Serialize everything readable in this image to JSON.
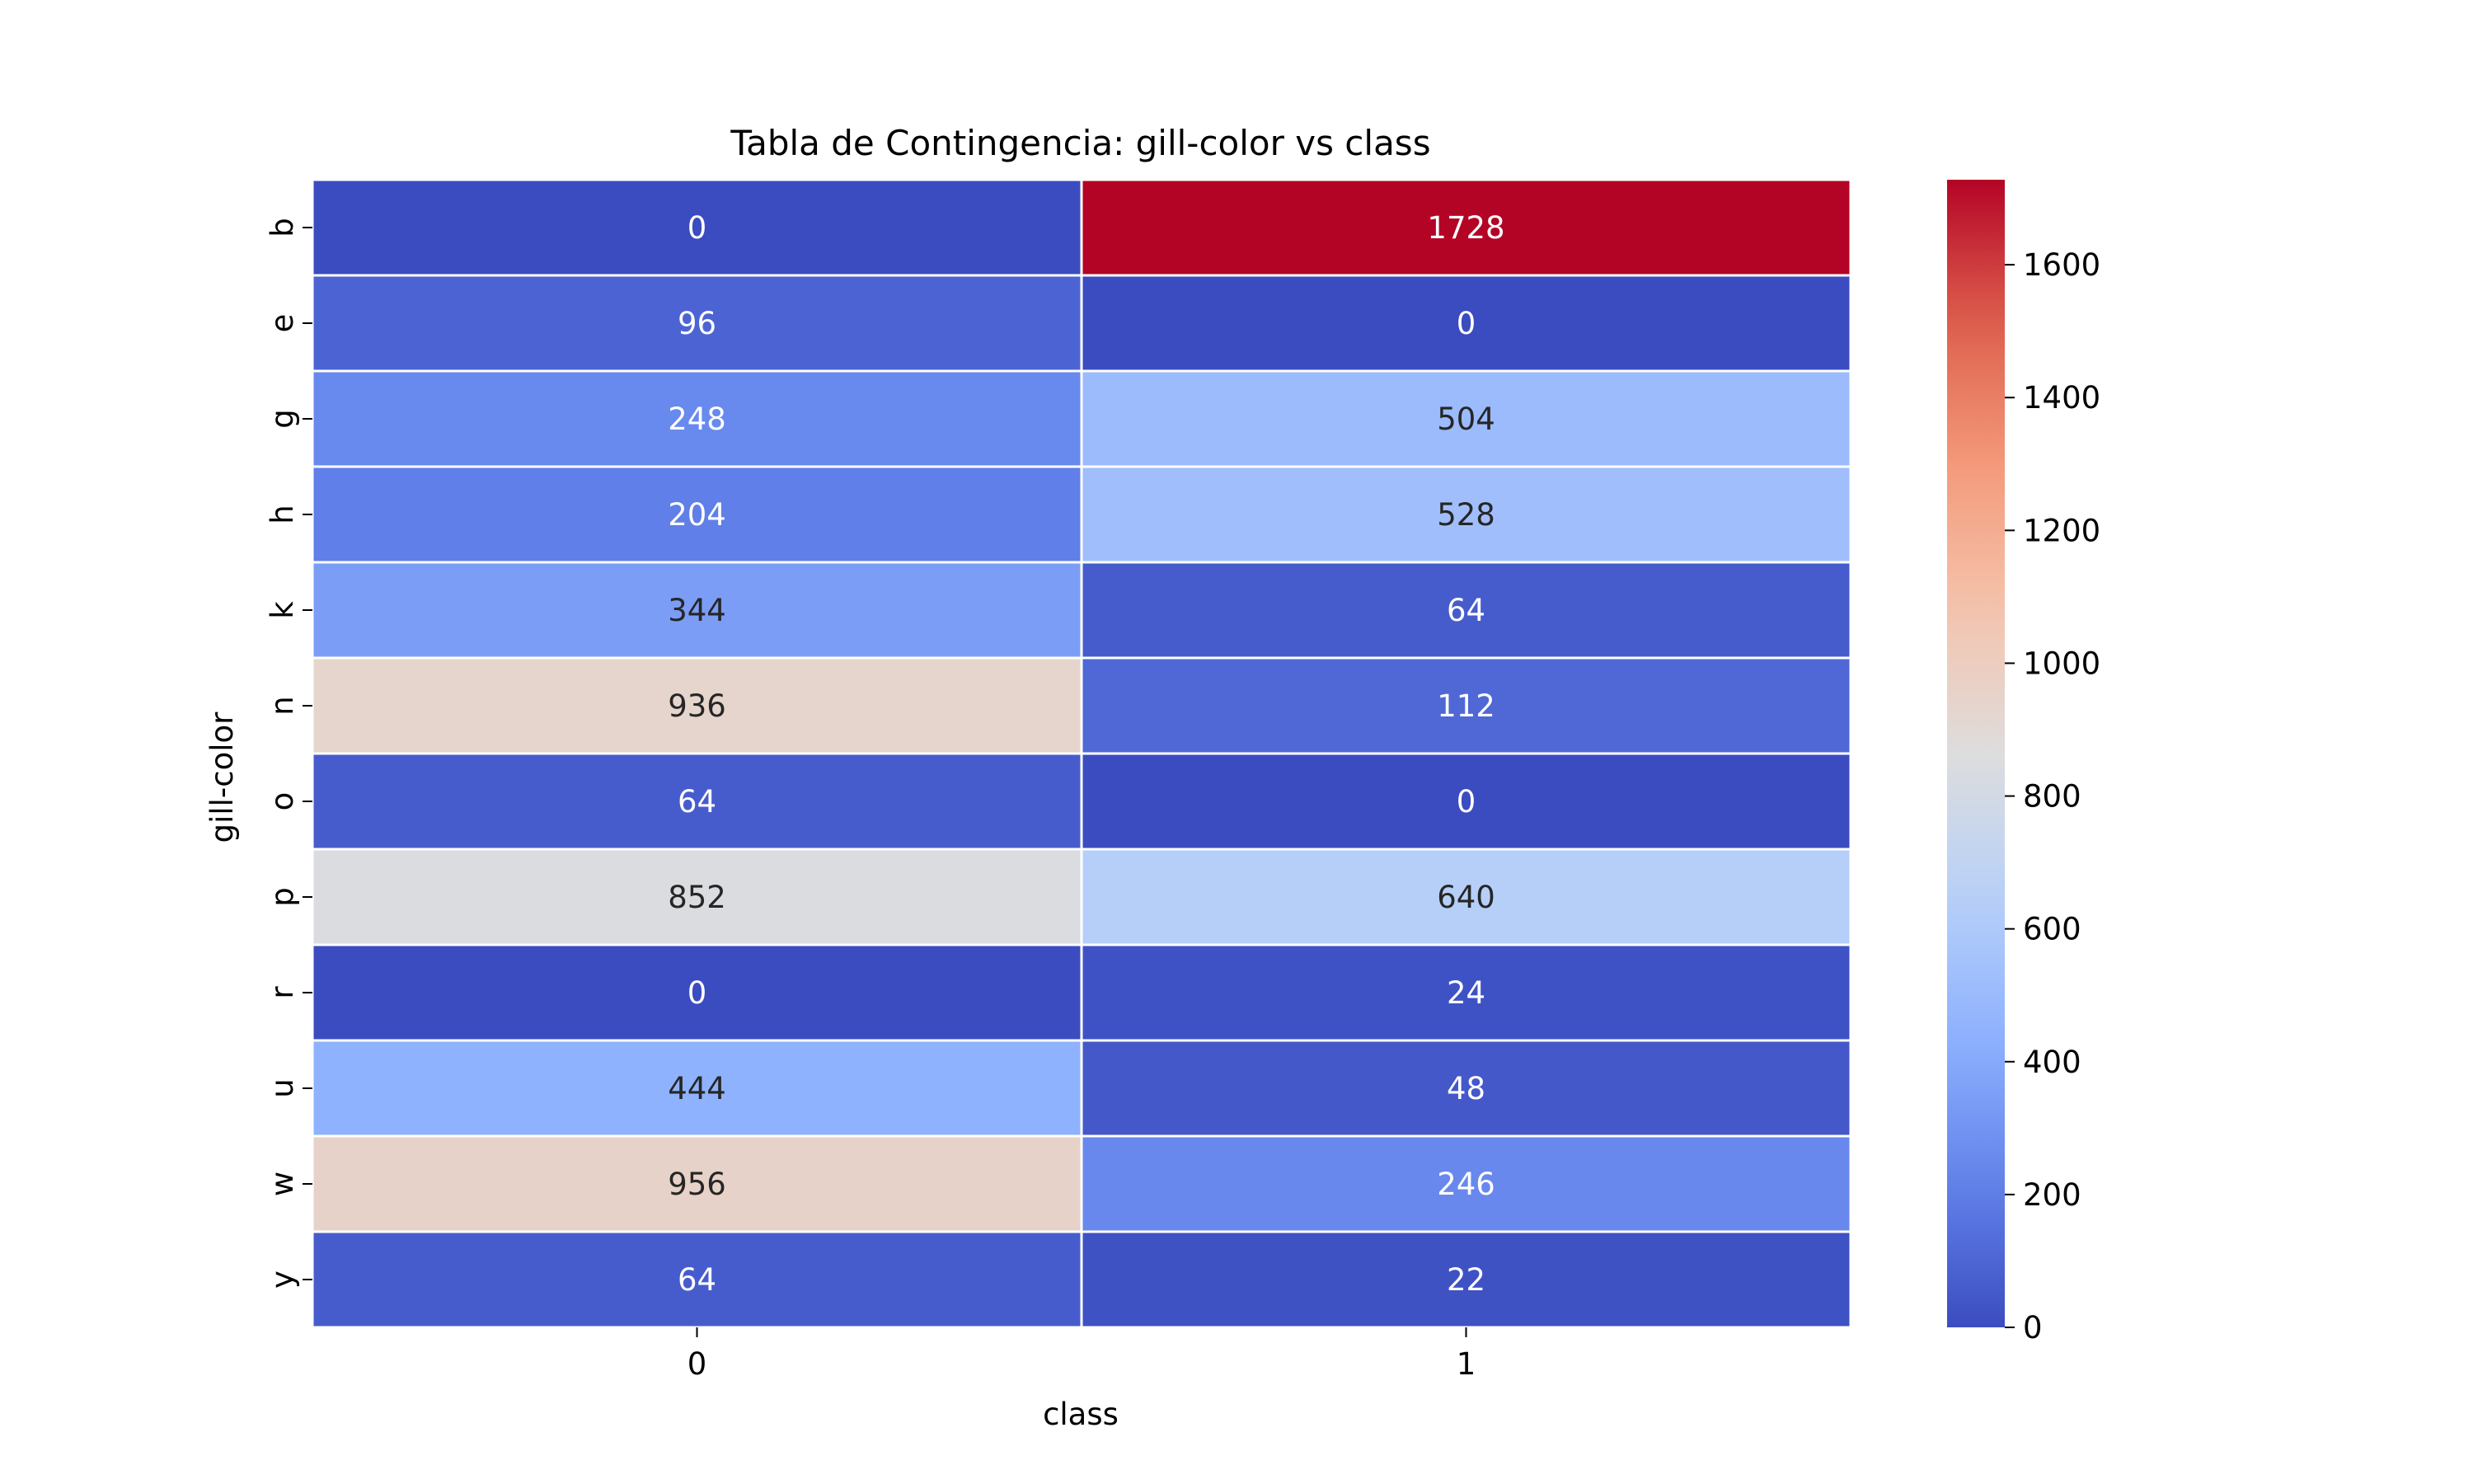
{
  "chart_data": {
    "type": "heatmap",
    "title": "Tabla de Contingencia: gill-color vs class",
    "xlabel": "class",
    "ylabel": "gill-color",
    "x_categories": [
      "0",
      "1"
    ],
    "y_categories": [
      "b",
      "e",
      "g",
      "h",
      "k",
      "n",
      "o",
      "p",
      "r",
      "u",
      "w",
      "y"
    ],
    "values": [
      [
        0,
        1728
      ],
      [
        96,
        0
      ],
      [
        248,
        504
      ],
      [
        204,
        528
      ],
      [
        344,
        64
      ],
      [
        936,
        112
      ],
      [
        64,
        0
      ],
      [
        852,
        640
      ],
      [
        0,
        24
      ],
      [
        444,
        48
      ],
      [
        956,
        246
      ],
      [
        64,
        22
      ]
    ],
    "colormap": "coolwarm",
    "vmin": 0,
    "vmax": 1728,
    "colorbar_ticks": [
      0,
      200,
      400,
      600,
      800,
      1000,
      1200,
      1400,
      1600
    ],
    "annotations": true,
    "grid_lines_color": "#ffffff"
  }
}
